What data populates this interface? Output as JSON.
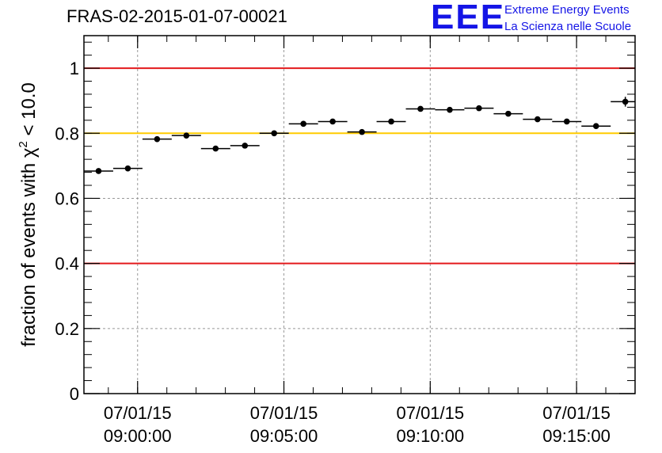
{
  "header": {
    "title": "FRAS-02-2015-01-07-00021",
    "logo": {
      "mark": "EEE",
      "line1": "Extreme Energy Events",
      "line2": "La Scienza nelle Scuole"
    }
  },
  "colors": {
    "red_line": "#e31a1c",
    "yellow_line": "#ffcc00",
    "grid": "#999999",
    "points": "#000000",
    "logo": "#1414e6"
  },
  "chart_data": {
    "type": "scatter",
    "title": "FRAS-02-2015-01-07-00021",
    "ylabel_main": "fraction of events with χ",
    "ylabel_sup": "2",
    "ylabel_tail": " < 10.0",
    "ylim": [
      0,
      1.1
    ],
    "yticks": [
      0,
      0.2,
      0.4,
      0.6,
      0.8,
      1
    ],
    "ytick_labels": [
      "0",
      "0.2",
      "0.4",
      "0.6",
      "0.8",
      "1"
    ],
    "x_start": "2015-01-07 08:58:10",
    "x_end": "2015-01-07 09:17:00",
    "xtick_labels": [
      {
        "date": "07/01/15",
        "time": "09:00:00"
      },
      {
        "date": "07/01/15",
        "time": "09:05:00"
      },
      {
        "date": "07/01/15",
        "time": "09:10:00"
      },
      {
        "date": "07/01/15",
        "time": "09:15:00"
      }
    ],
    "bin_width_seconds": 60,
    "points": [
      {
        "x": "2015-01-07 08:58:40",
        "y": 0.684,
        "yerr": 0.008
      },
      {
        "x": "2015-01-07 08:59:40",
        "y": 0.692,
        "yerr": 0.008
      },
      {
        "x": "2015-01-07 09:00:40",
        "y": 0.782,
        "yerr": 0.007
      },
      {
        "x": "2015-01-07 09:01:40",
        "y": 0.793,
        "yerr": 0.007
      },
      {
        "x": "2015-01-07 09:02:40",
        "y": 0.753,
        "yerr": 0.007
      },
      {
        "x": "2015-01-07 09:03:40",
        "y": 0.762,
        "yerr": 0.007
      },
      {
        "x": "2015-01-07 09:04:40",
        "y": 0.8,
        "yerr": 0.006
      },
      {
        "x": "2015-01-07 09:05:40",
        "y": 0.829,
        "yerr": 0.006
      },
      {
        "x": "2015-01-07 09:06:40",
        "y": 0.836,
        "yerr": 0.006
      },
      {
        "x": "2015-01-07 09:07:40",
        "y": 0.804,
        "yerr": 0.006
      },
      {
        "x": "2015-01-07 09:08:40",
        "y": 0.836,
        "yerr": 0.006
      },
      {
        "x": "2015-01-07 09:09:40",
        "y": 0.875,
        "yerr": 0.005
      },
      {
        "x": "2015-01-07 09:10:40",
        "y": 0.872,
        "yerr": 0.005
      },
      {
        "x": "2015-01-07 09:11:40",
        "y": 0.877,
        "yerr": 0.005
      },
      {
        "x": "2015-01-07 09:12:40",
        "y": 0.86,
        "yerr": 0.005
      },
      {
        "x": "2015-01-07 09:13:40",
        "y": 0.843,
        "yerr": 0.005
      },
      {
        "x": "2015-01-07 09:14:40",
        "y": 0.836,
        "yerr": 0.005
      },
      {
        "x": "2015-01-07 09:15:40",
        "y": 0.822,
        "yerr": 0.006
      },
      {
        "x": "2015-01-07 09:16:40",
        "y": 0.897,
        "yerr": 0.015
      }
    ],
    "hlines": [
      {
        "y": 1.0,
        "color": "#e31a1c"
      },
      {
        "y": 0.8,
        "color": "#ffcc00"
      },
      {
        "y": 0.4,
        "color": "#e31a1c"
      }
    ],
    "grid": true
  }
}
